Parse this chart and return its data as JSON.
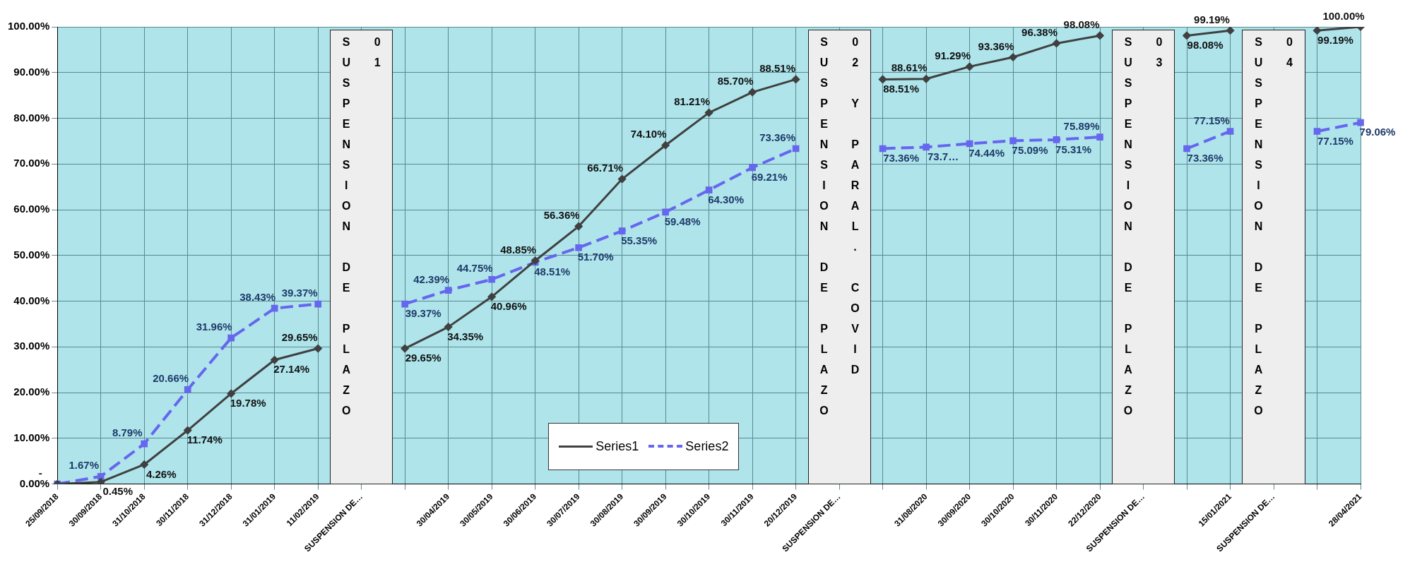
{
  "chart_data": {
    "type": "line",
    "categories": [
      "25/09/2018",
      "30/09/2018",
      "31/10/2018",
      "30/11/2018",
      "31/12/2018",
      "31/01/2019",
      "11/02/2019",
      "SUSPENSION DE…",
      null,
      "30/04/2019",
      "30/05/2019",
      "30/06/2019",
      "30/07/2019",
      "30/08/2019",
      "30/09/2019",
      "30/10/2019",
      "30/11/2019",
      "20/12/2019",
      "SUSPENSION DE…",
      null,
      "31/08/2020",
      "30/09/2020",
      "30/10/2020",
      "30/11/2020",
      "22/12/2020",
      "SUSPENSION DE…",
      null,
      "15/01/2021",
      "SUSPENSION DE…",
      null,
      "28/04/2021"
    ],
    "series": [
      {
        "name": "Series1",
        "color": "#404040",
        "marker": "diamond",
        "line_style": "solid",
        "values": [
          0,
          0.45,
          4.26,
          11.74,
          19.78,
          27.14,
          29.65,
          null,
          29.65,
          34.35,
          40.96,
          48.85,
          56.36,
          66.71,
          74.1,
          81.21,
          85.7,
          88.51,
          null,
          88.51,
          88.61,
          91.29,
          93.36,
          96.38,
          98.08,
          null,
          98.08,
          99.19,
          null,
          99.19,
          100.0
        ],
        "value_labels": [
          "-",
          "0.45%",
          "4.26%",
          "11.74%",
          "19.78%",
          "27.14%",
          "29.65%",
          null,
          "29.65%",
          "34.35%",
          "40.96%",
          "48.85%",
          "56.36%",
          "66.71%",
          "74.10%",
          "81.21%",
          "85.70%",
          "88.51%",
          null,
          "88.51%",
          "88.61%",
          "91.29%",
          "93.36%",
          "96.38%",
          "98.08%",
          null,
          "98.08%",
          "99.19%",
          null,
          "99.19%",
          "100.00%"
        ]
      },
      {
        "name": "Series2",
        "color": "#6666ee",
        "marker": "square",
        "line_style": "dashed",
        "values": [
          0,
          1.67,
          8.79,
          20.66,
          31.96,
          38.43,
          39.37,
          null,
          39.37,
          42.39,
          44.75,
          48.51,
          51.7,
          55.35,
          59.48,
          64.3,
          69.21,
          73.36,
          null,
          73.36,
          73.7,
          74.44,
          75.09,
          75.31,
          75.89,
          null,
          73.36,
          77.15,
          null,
          77.15,
          79.06
        ],
        "value_labels": [
          null,
          "1.67%",
          "8.79%",
          "20.66%",
          "31.96%",
          "38.43%",
          "39.37%",
          null,
          "39.37%",
          "42.39%",
          "44.75%",
          "48.51%",
          "51.70%",
          "55.35%",
          "59.48%",
          "64.30%",
          "69.21%",
          "73.36%",
          null,
          "73.36%",
          "73.7…",
          "74.44%",
          "75.09%",
          "75.31%",
          "75.89%",
          null,
          "73.36%",
          "77.15%",
          null,
          "77.15%",
          "79.06%"
        ]
      }
    ],
    "ylim": [
      0,
      100
    ],
    "yticks": [
      {
        "value": 0,
        "label": "0.00%"
      },
      {
        "value": 10,
        "label": "10.00%"
      },
      {
        "value": 20,
        "label": "20.00%"
      },
      {
        "value": 30,
        "label": "30.00%"
      },
      {
        "value": 40,
        "label": "40.00%"
      },
      {
        "value": 50,
        "label": "50.00%"
      },
      {
        "value": 60,
        "label": "60.00%"
      },
      {
        "value": 70,
        "label": "70.00%"
      },
      {
        "value": 80,
        "label": "80.00%"
      },
      {
        "value": 90,
        "label": "90.00%"
      },
      {
        "value": 100,
        "label": "100.00%"
      }
    ],
    "grid": true,
    "legend": "bottom",
    "annotations": [
      "SUSPENSION DE PLAZO\n01",
      "SUSPENSION DE PLAZO\n02 Y PARAL. COVID",
      "SUSPENSION DE PLAZO\n03",
      "SUSPENSION DE PLAZO\n04"
    ]
  }
}
